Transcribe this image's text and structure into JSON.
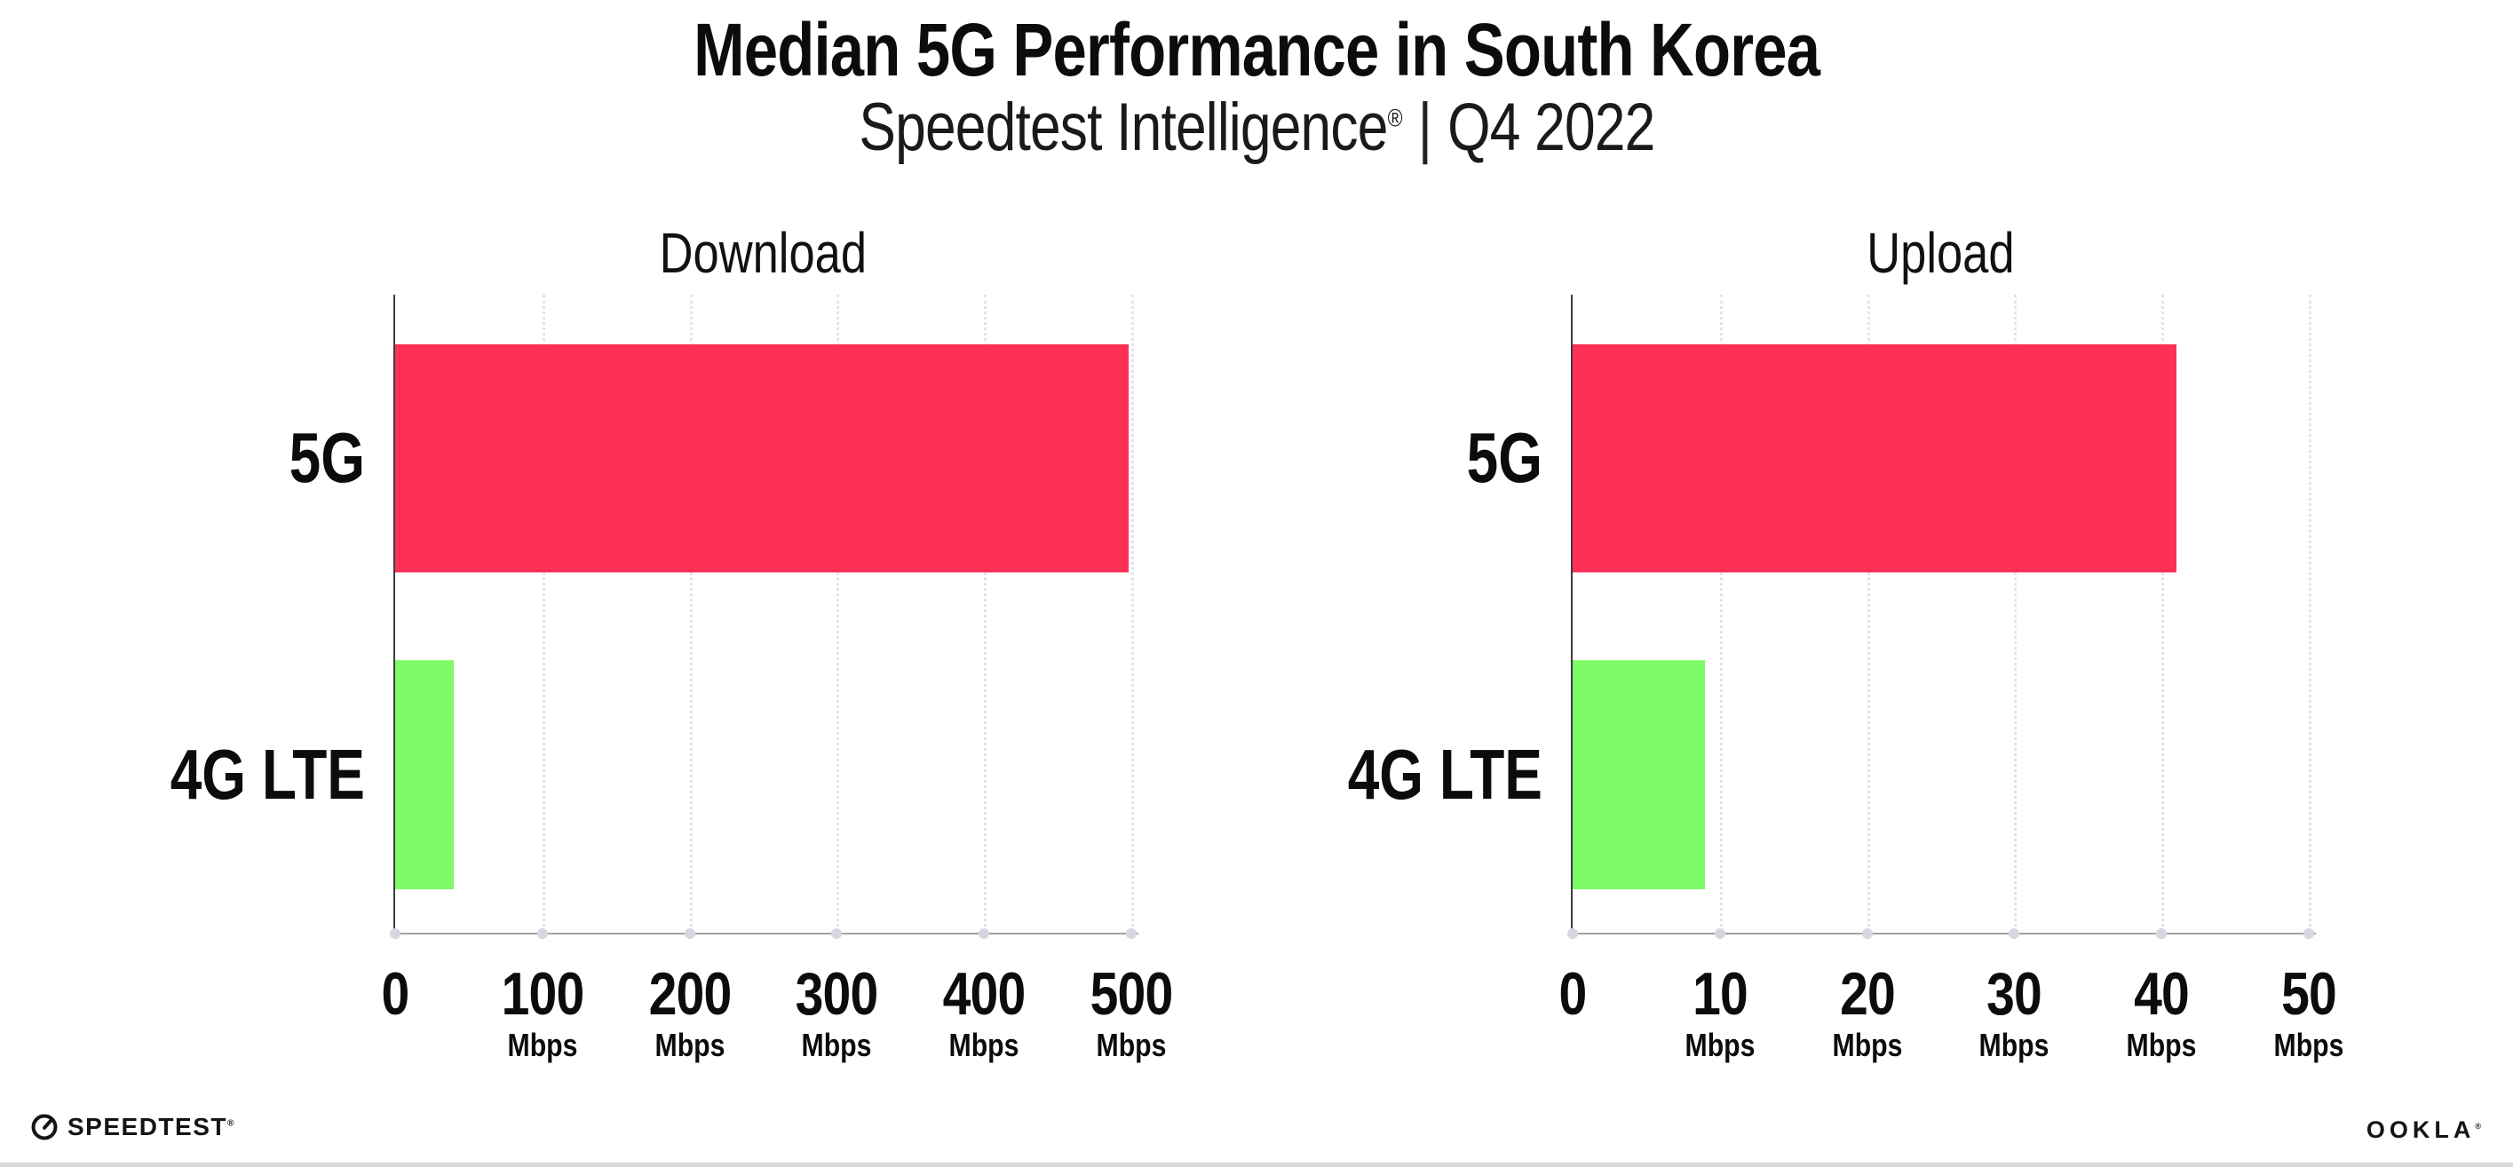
{
  "header": {
    "title": "Median 5G Performance in South Korea",
    "subtitle": {
      "brand": "Speedtest Intelligence",
      "mark": "®",
      "divider": "|",
      "period": "Q4 2022"
    }
  },
  "colors": {
    "bar_5g_pink": "#FF3056",
    "bar_4g_green": "#7DFA66",
    "gridline": "#E3E3ED",
    "x_axis": "#A2A2A2",
    "y_axis": "#3C3C44",
    "bottom_strip": "#D8D8D8"
  },
  "chart_data": [
    {
      "type": "bar",
      "orientation": "horizontal",
      "title": "Download",
      "categories": [
        "5G",
        "4G LTE"
      ],
      "values": [
        498,
        40
      ],
      "bar_colors": [
        "#FF3056",
        "#7DFA66"
      ],
      "unit": "Mbps",
      "tick_unit": "Mbps",
      "xlim": [
        0,
        500
      ],
      "xticks": [
        0,
        100,
        200,
        300,
        400,
        500
      ],
      "grid": "vertical-dotted",
      "legend": "none"
    },
    {
      "type": "bar",
      "orientation": "horizontal",
      "title": "Upload",
      "categories": [
        "5G",
        "4G LTE"
      ],
      "values": [
        41,
        9
      ],
      "bar_colors": [
        "#FF3056",
        "#7DFA66"
      ],
      "unit": "Mbps",
      "tick_unit": "Mbps",
      "xlim": [
        0,
        50
      ],
      "xticks": [
        0,
        10,
        20,
        30,
        40,
        50
      ],
      "grid": "vertical-dotted",
      "legend": "none"
    }
  ],
  "footer": {
    "speedtest_text": "SPEEDTEST",
    "speedtest_mark": "®",
    "speedtest_icon": "gauge-icon",
    "ookla_text": "OOKLA",
    "ookla_mark": "®"
  }
}
